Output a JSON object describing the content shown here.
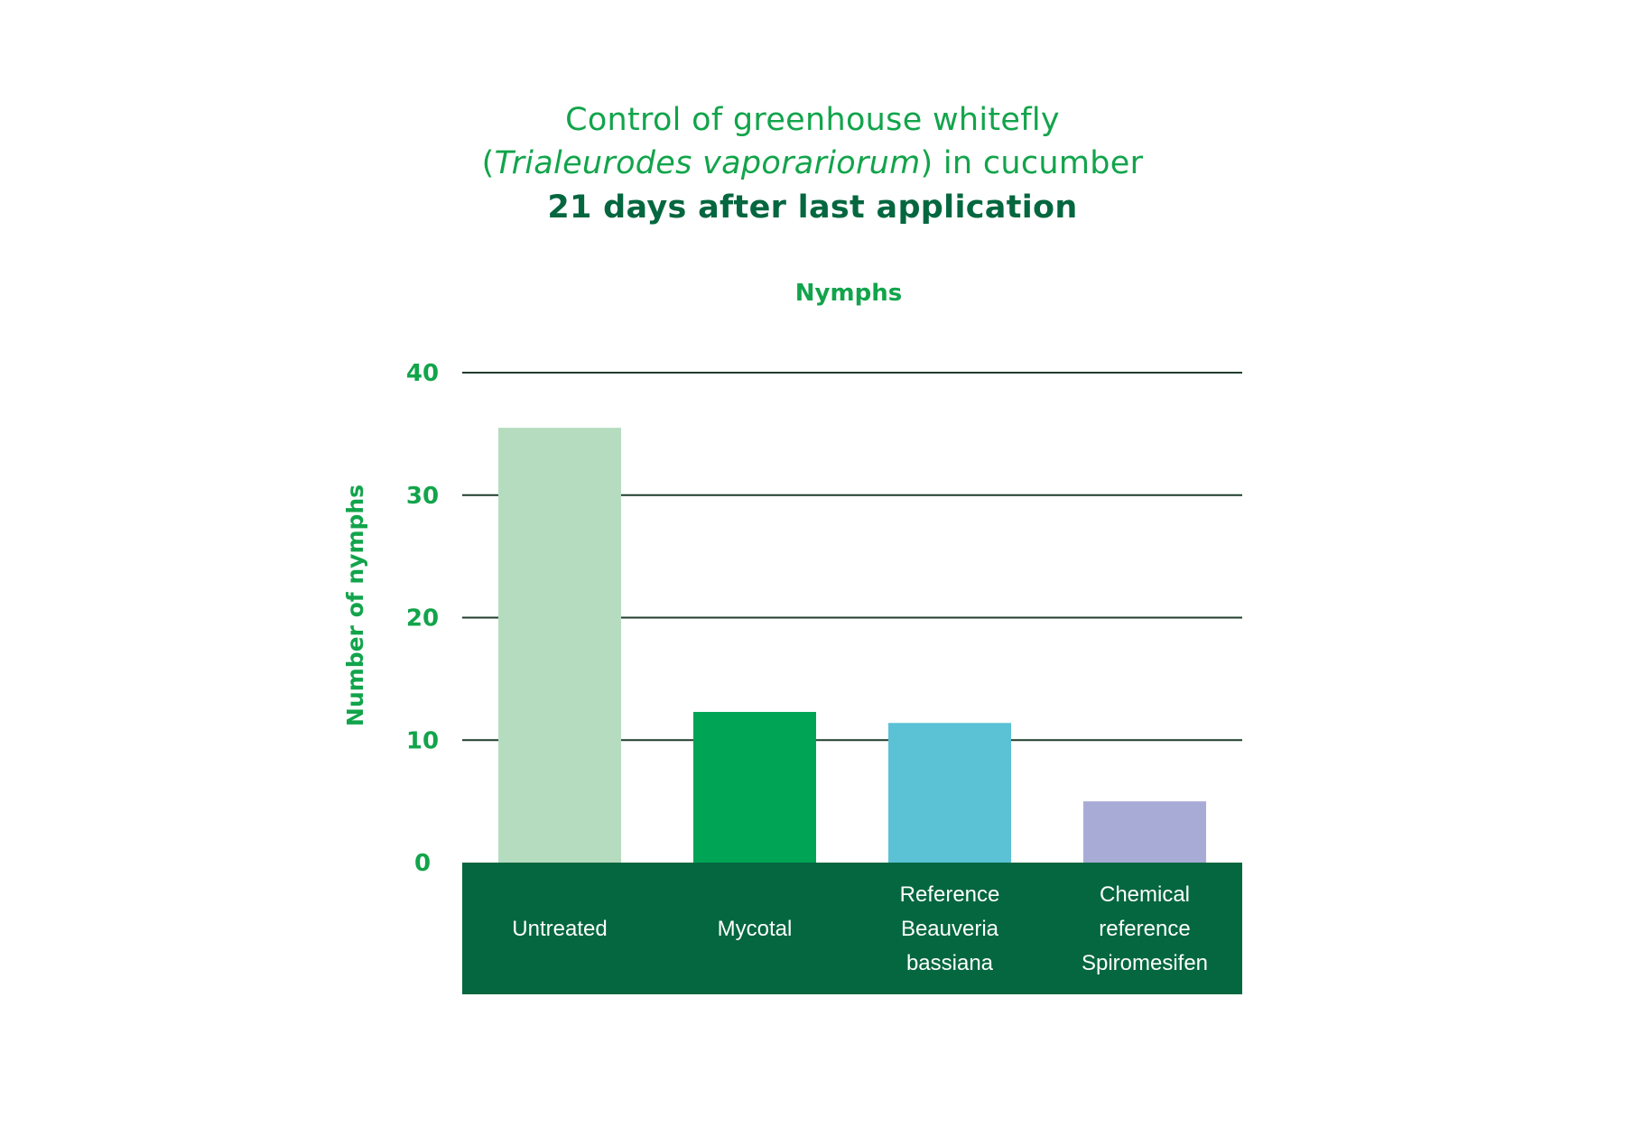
{
  "title": {
    "line1": "Control of greenhouse whitefly",
    "line2_open": "(",
    "line2_italic": "Trialeurodes vaporariorum",
    "line2_close": ") in cucumber",
    "line3": "21 days after last application"
  },
  "colors": {
    "title_green": "#12a44b",
    "dark_green": "#04673f",
    "gridline": "#1f3d2c"
  },
  "chart_data": {
    "type": "bar",
    "title": "Nymphs",
    "ylabel": "Number of nymphs",
    "xlabel": "",
    "ylim": [
      0,
      40
    ],
    "yticks": [
      0,
      10,
      20,
      30,
      40
    ],
    "grid": true,
    "categories": [
      [
        "Untreated"
      ],
      [
        "Mycotal"
      ],
      [
        "Reference",
        "Beauveria",
        "bassiana"
      ],
      [
        "Chemical",
        "reference",
        "Spiromesifen"
      ]
    ],
    "values": [
      35.5,
      12.3,
      11.4,
      5.0
    ],
    "bar_colors": [
      "#b6dcbf",
      "#00a455",
      "#5bc1d5",
      "#a9abd7"
    ]
  }
}
